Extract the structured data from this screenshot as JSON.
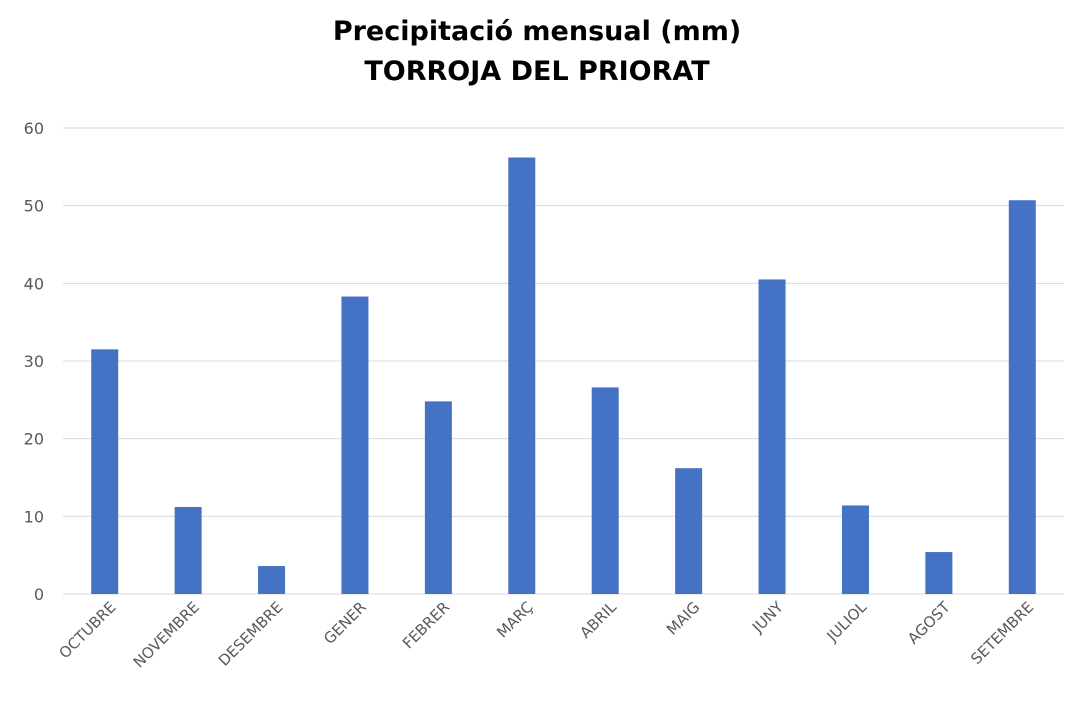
{
  "chart_data": {
    "type": "bar",
    "title": "Precipitació mensual (mm)",
    "subtitle": "TORROJA DEL PRIORAT",
    "xlabel": "",
    "ylabel": "",
    "categories": [
      "OCTUBRE",
      "NOVEMBRE",
      "DESEMBRE",
      "GENER",
      "FEBRER",
      "MARÇ",
      "ABRIL",
      "MAIG",
      "JUNY",
      "JULIOL",
      "AGOST",
      "SETEMBRE"
    ],
    "values": [
      31.5,
      11.2,
      3.6,
      38.3,
      24.8,
      56.2,
      26.6,
      16.2,
      40.5,
      11.4,
      5.4,
      50.7
    ],
    "ylim": [
      0,
      60
    ],
    "yticks": [
      0,
      10,
      20,
      30,
      40,
      50,
      60
    ],
    "grid": true,
    "legend": "none",
    "colors": {
      "bar": "#4472C4",
      "grid": "#D9D9D9",
      "axis": "#D9D9D9",
      "text": "#595959"
    }
  }
}
